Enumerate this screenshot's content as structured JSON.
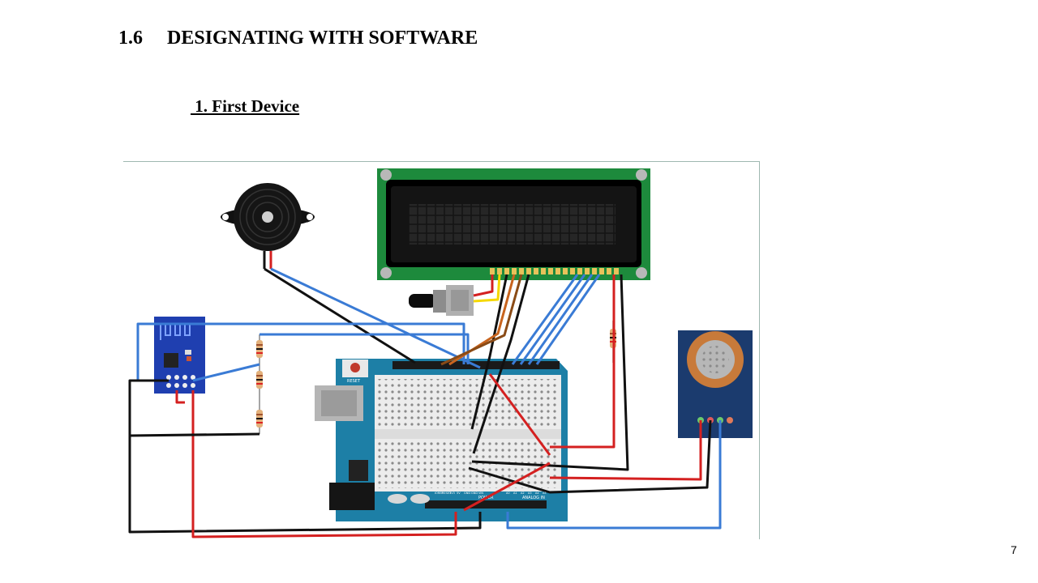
{
  "heading": {
    "number": "1.6",
    "title": "DESIGNATING WITH SOFTWARE"
  },
  "subheading": " 1. First Device",
  "figure": {
    "board_labels": {
      "reset": "RESET",
      "power": "POWER",
      "analog_in": "ANALOG IN",
      "power_pins": [
        "IOREF",
        "RESET",
        "3V3",
        "5V",
        "GND",
        "GND",
        "VIN"
      ],
      "analog_pins": [
        "A0",
        "A1",
        "A2",
        "A3",
        "A4",
        "A5"
      ]
    }
  },
  "page_number": "7"
}
